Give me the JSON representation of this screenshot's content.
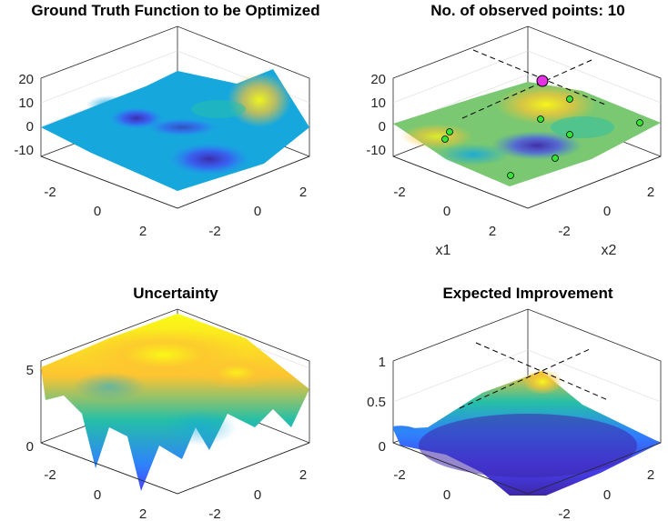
{
  "colors": {
    "parula": [
      "#3E26A8",
      "#4743F8",
      "#2E83FB",
      "#16A8DD",
      "#25BFA7",
      "#7AC871",
      "#D4BD3C",
      "#FDC431",
      "#F9FB15"
    ],
    "observed_point": "#33E633",
    "best_point": "#E633E6"
  },
  "chart_data": [
    {
      "type": "surface",
      "title": "Ground Truth Function to be Optimized",
      "xlabel": "",
      "ylabel": "",
      "zlabel": "",
      "xlim": [
        -3,
        3
      ],
      "ylim": [
        -3,
        3
      ],
      "zlim": [
        -16,
        22
      ],
      "x_ticks": [
        "-2",
        "0",
        "2"
      ],
      "y_ticks": [
        "-2",
        "0",
        "2"
      ],
      "z_ticks": [
        "20",
        "10",
        "0",
        "-10"
      ],
      "colormap": "parula",
      "grid": true
    },
    {
      "type": "surface",
      "title": "No. of observed points: 10",
      "xlabel": "x1",
      "ylabel": "x2",
      "zlabel": "",
      "xlim": [
        -3,
        3
      ],
      "ylim": [
        -3,
        3
      ],
      "zlim": [
        -16,
        22
      ],
      "x_ticks": [
        "-2",
        "0",
        "2"
      ],
      "y_ticks": [
        "-2",
        "0",
        "2"
      ],
      "z_ticks": [
        "20",
        "10",
        "0",
        "-10"
      ],
      "colormap": "parula",
      "grid": true,
      "observed_points_count": 10,
      "best_point_marker": "magenta"
    },
    {
      "type": "surface",
      "title": "Uncertainty",
      "xlabel": "",
      "ylabel": "",
      "zlabel": "",
      "xlim": [
        -3,
        3
      ],
      "ylim": [
        -3,
        3
      ],
      "zlim": [
        0,
        6.5
      ],
      "x_ticks": [
        "-2",
        "0",
        "2"
      ],
      "y_ticks": [
        "-2",
        "0",
        "2"
      ],
      "z_ticks": [
        "5",
        "0"
      ],
      "colormap": "parula",
      "grid": true
    },
    {
      "type": "surface",
      "title": "Expected Improvement",
      "xlabel": "",
      "ylabel": "",
      "zlabel": "",
      "xlim": [
        -3,
        3
      ],
      "ylim": [
        -3,
        3
      ],
      "zlim": [
        0,
        1.1
      ],
      "x_ticks": [
        "-2",
        "0",
        "2"
      ],
      "y_ticks": [
        "-2",
        "0",
        "2"
      ],
      "z_ticks": [
        "1",
        "0.5",
        "0"
      ],
      "colormap": "parula",
      "grid": true
    }
  ]
}
